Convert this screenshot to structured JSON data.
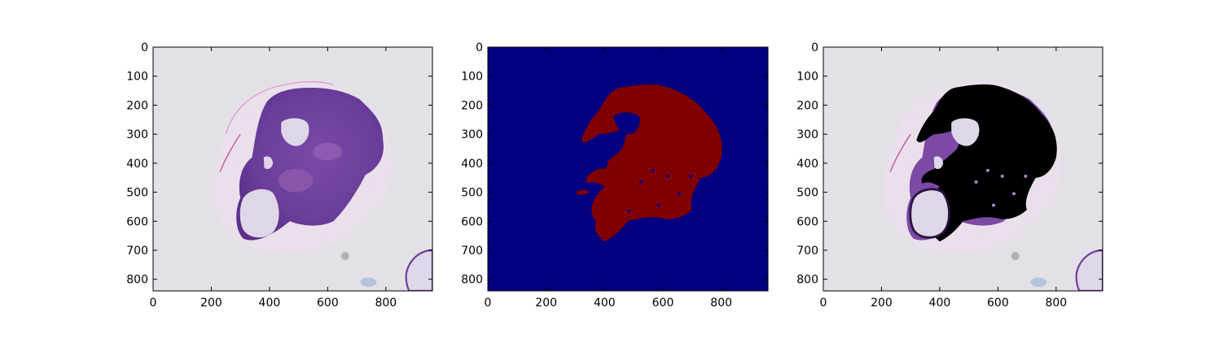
{
  "figure": {
    "panels": [
      {
        "id": "original",
        "image_content": "H&E stained tissue section (purple/pink) on light grey background",
        "xticks": [
          "0",
          "200",
          "400",
          "600",
          "800"
        ],
        "yticks": [
          "0",
          "100",
          "200",
          "300",
          "400",
          "500",
          "600",
          "700",
          "800"
        ]
      },
      {
        "id": "mask",
        "image_content": "segmentation mask: dark red region on dark blue background",
        "xticks": [
          "0",
          "200",
          "400",
          "600",
          "800"
        ],
        "yticks": [
          "0",
          "100",
          "200",
          "300",
          "400",
          "500",
          "600",
          "700",
          "800"
        ]
      },
      {
        "id": "masked-overlay",
        "image_content": "tissue section with masked tumour region filled black",
        "xticks": [
          "0",
          "200",
          "400",
          "600",
          "800"
        ],
        "yticks": [
          "0",
          "100",
          "200",
          "300",
          "400",
          "500",
          "600",
          "700",
          "800"
        ]
      }
    ],
    "image_extent": {
      "width": 960,
      "height": 840
    },
    "colors": {
      "slide_background": "#e4e0e8",
      "tissue_purple": "#6a3d9a",
      "tissue_pink": "#d9a3d8",
      "mask_background": "#000080",
      "mask_foreground": "#800000",
      "mask_fill": "#000000"
    }
  }
}
